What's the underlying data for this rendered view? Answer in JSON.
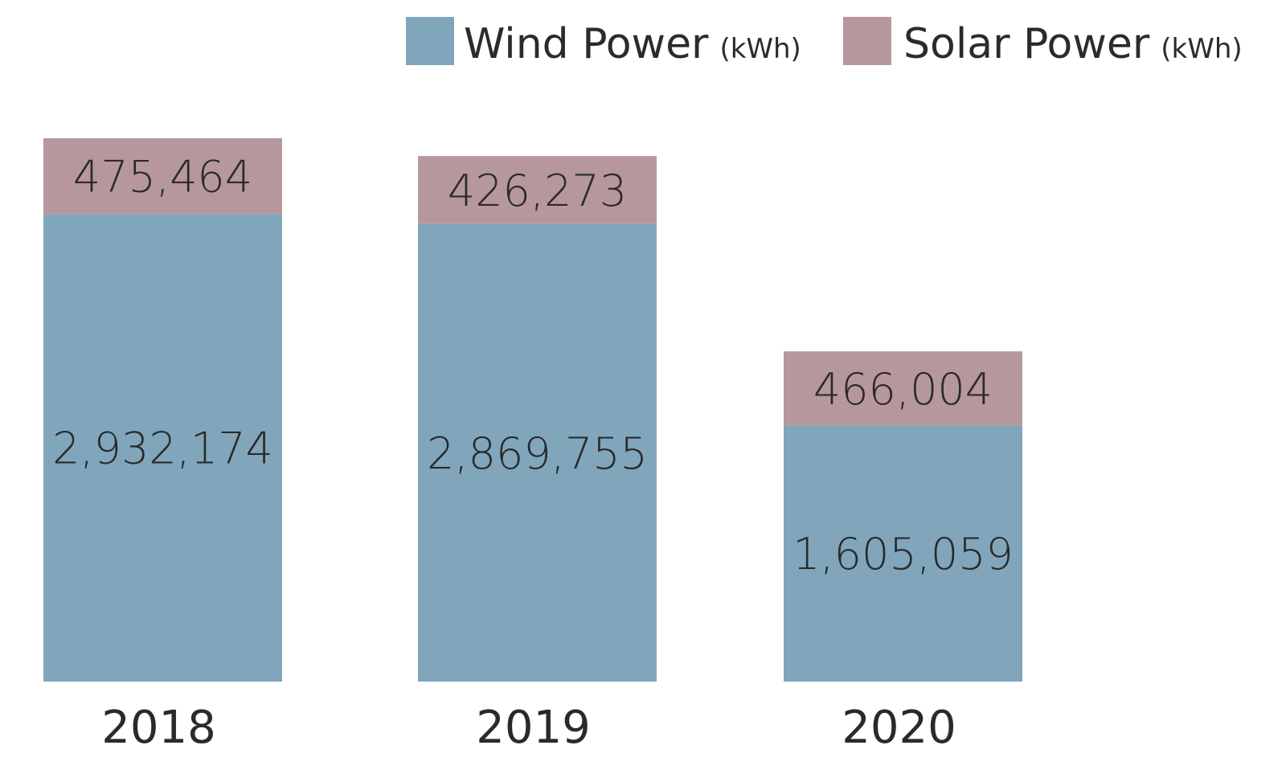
{
  "chart_data": {
    "type": "bar",
    "stacked": true,
    "categories": [
      "2018",
      "2019",
      "2020"
    ],
    "series": [
      {
        "name": "Wind Power",
        "unit": "(kWh)",
        "color": "#81a6bc",
        "values": [
          2932174,
          2869755,
          1605059
        ],
        "labels": [
          "2,932,174",
          "2,869,755",
          "1,605,059"
        ]
      },
      {
        "name": "Solar Power",
        "unit": "(kWh)",
        "color": "#b7979e",
        "values": [
          475464,
          426273,
          466004
        ],
        "labels": [
          "475,464",
          "426,273",
          "466,004"
        ]
      }
    ],
    "ylim": [
      0,
      3407638
    ],
    "grid": false,
    "legend_position": "top-right"
  }
}
